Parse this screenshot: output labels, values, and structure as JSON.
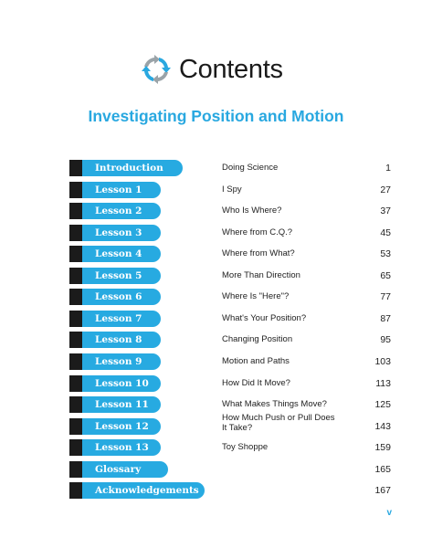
{
  "header": {
    "title": "Contents",
    "logo_icon": "recycle-arrows-icon"
  },
  "subtitle": "Investigating Position and Motion",
  "colors": {
    "accent_blue": "#27aae1",
    "tab_black": "#1b1b1b",
    "subtitle_blue": "#29a8e0"
  },
  "entries": [
    {
      "tab": "Introduction",
      "title": "Doing Science",
      "page": "1"
    },
    {
      "tab": "Lesson 1",
      "title": "I Spy",
      "page": "27"
    },
    {
      "tab": "Lesson 2",
      "title": "Who Is Where?",
      "page": "37"
    },
    {
      "tab": "Lesson 3",
      "title": "Where from C.Q.?",
      "page": "45"
    },
    {
      "tab": "Lesson 4",
      "title": "Where from What?",
      "page": "53"
    },
    {
      "tab": "Lesson 5",
      "title": "More Than Direction",
      "page": "65"
    },
    {
      "tab": "Lesson 6",
      "title": "Where Is \"Here\"?",
      "page": "77"
    },
    {
      "tab": "Lesson 7",
      "title": "What's Your Position?",
      "page": "87"
    },
    {
      "tab": "Lesson 8",
      "title": "Changing Position",
      "page": "95"
    },
    {
      "tab": "Lesson 9",
      "title": "Motion and Paths",
      "page": "103"
    },
    {
      "tab": "Lesson 10",
      "title": "How Did It Move?",
      "page": "113"
    },
    {
      "tab": "Lesson 11",
      "title": "What Makes Things Move?",
      "page": "125"
    },
    {
      "tab": "Lesson 12",
      "title": "How Much Push or Pull Does It Take?",
      "page": "143"
    },
    {
      "tab": "Lesson 13",
      "title": "Toy Shoppe",
      "page": "159"
    },
    {
      "tab": "Glossary",
      "title": "",
      "page": "165"
    },
    {
      "tab": "Acknowledgements",
      "title": "",
      "page": "167"
    }
  ],
  "footer": {
    "page_marker": "v"
  }
}
